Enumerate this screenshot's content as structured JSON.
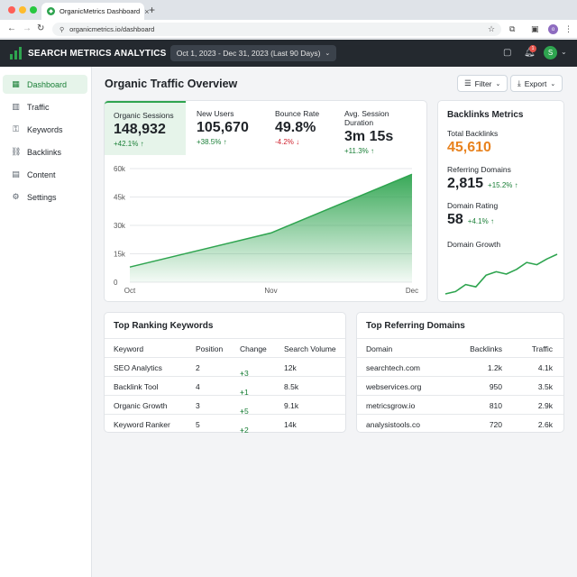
{
  "browser": {
    "tab_title": "OrganicMetrics Dashboard",
    "url": "organicmetrics.io/dashboard",
    "profile_initial": "o"
  },
  "header": {
    "brand": "SEARCH METRICS ANALYTICS",
    "date_range": "Oct 1, 2023 - Dec 31, 2023 (Last 90 Days)",
    "notification_count": "1",
    "user_initial": "S"
  },
  "sidebar": {
    "items": [
      {
        "label": "Dashboard",
        "icon": "grid-icon",
        "active": true
      },
      {
        "label": "Traffic",
        "icon": "bar-chart-icon",
        "active": false
      },
      {
        "label": "Keywords",
        "icon": "key-icon",
        "active": false
      },
      {
        "label": "Backlinks",
        "icon": "link-icon",
        "active": false
      },
      {
        "label": "Content",
        "icon": "document-icon",
        "active": false
      },
      {
        "label": "Settings",
        "icon": "gear-icon",
        "active": false
      }
    ]
  },
  "page": {
    "title": "Organic Traffic Overview",
    "filter_label": "Filter",
    "export_label": "Export"
  },
  "kpis": [
    {
      "label": "Organic Sessions",
      "value": "148,932",
      "change": "+42.1%",
      "trend": "up"
    },
    {
      "label": "New Users",
      "value": "105,670",
      "change": "+38.5%",
      "trend": "up"
    },
    {
      "label": "Bounce Rate",
      "value": "49.8%",
      "change": "-4.2%",
      "trend": "down"
    },
    {
      "label": "Avg. Session Duration",
      "value": "3m 15s",
      "change": "+11.3%",
      "trend": "up"
    }
  ],
  "chart_data": [
    {
      "type": "area",
      "categories": [
        "Oct",
        "Nov",
        "Dec"
      ],
      "x": [
        0,
        1,
        2
      ],
      "values": [
        8000,
        26000,
        57000
      ],
      "yticks": [
        "0",
        "15k",
        "30k",
        "45k",
        "60k"
      ],
      "ylim": [
        0,
        60000
      ],
      "color": "#2ea44f"
    },
    {
      "type": "line",
      "title": "Domain Growth",
      "values": [
        10,
        12,
        18,
        16,
        26,
        29,
        27,
        31,
        37,
        35,
        40,
        44
      ],
      "color": "#2ea44f"
    }
  ],
  "backlinks": {
    "title": "Backlinks Metrics",
    "total_label": "Total Backlinks",
    "total_value": "45,610",
    "total_color": "#e8821e",
    "ref_label": "Referring Domains",
    "ref_value": "2,815",
    "ref_change": "+15.2%",
    "rating_label": "Domain Rating",
    "rating_value": "58",
    "rating_change": "+4.1%",
    "growth_label": "Domain Growth"
  },
  "keywords": {
    "title": "Top Ranking Keywords",
    "columns": [
      "Keyword",
      "Position",
      "Change",
      "Search Volume"
    ],
    "rows": [
      [
        "SEO Analytics",
        "2",
        "+3",
        "12k"
      ],
      [
        "Backlink Tool",
        "4",
        "+1",
        "8.5k"
      ],
      [
        "Organic Growth",
        "3",
        "+5",
        "9.1k"
      ],
      [
        "Keyword Ranker",
        "5",
        "+2",
        "14k"
      ]
    ]
  },
  "domains": {
    "title": "Top Referring Domains",
    "columns": [
      "Domain",
      "Backlinks",
      "Traffic"
    ],
    "rows": [
      [
        "searchtech.com",
        "1.2k",
        "4.1k"
      ],
      [
        "webservices.org",
        "950",
        "3.5k"
      ],
      [
        "metricsgrow.io",
        "810",
        "2.9k"
      ],
      [
        "analysistools.co",
        "720",
        "2.6k"
      ]
    ]
  }
}
